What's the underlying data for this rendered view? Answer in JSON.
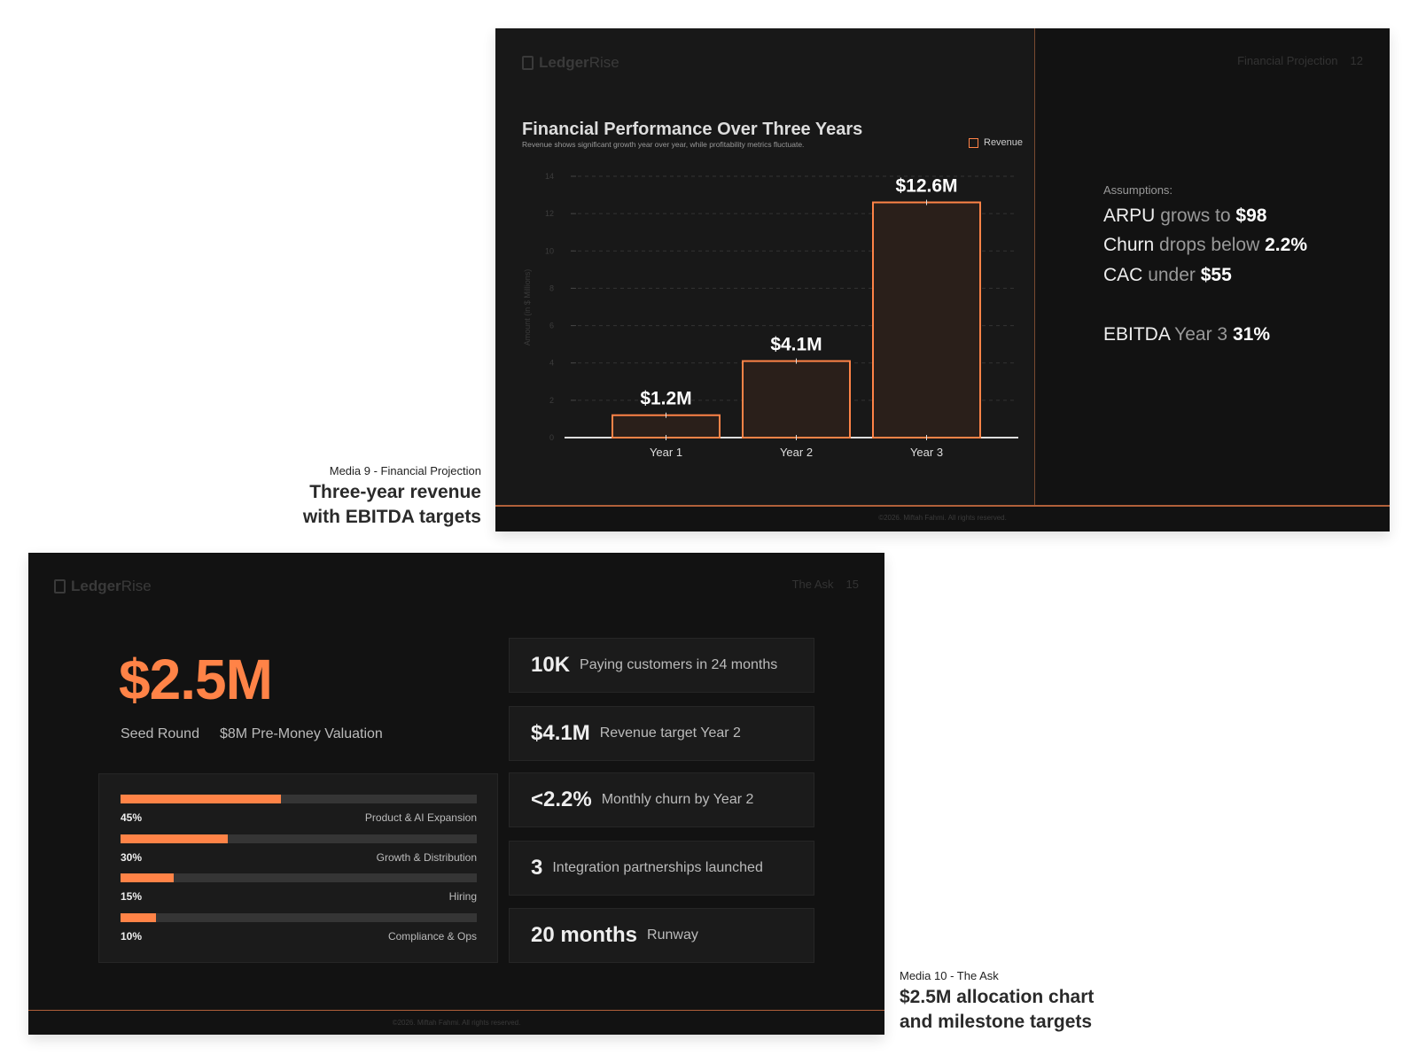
{
  "slide1": {
    "logo": {
      "bold": "Ledger",
      "light": "Rise"
    },
    "section": "Financial Projection",
    "page": "12",
    "footer": "©2026. Miftah Fahmi. All rights reserved.",
    "assumptions": {
      "label": "Assumptions:",
      "lines": [
        {
          "a": "ARPU",
          "b": "grows to",
          "c": "$98"
        },
        {
          "a": "Churn",
          "b": "drops below",
          "c": "2.2%"
        },
        {
          "a": "CAC",
          "b": "under",
          "c": "$55"
        },
        {
          "a": "EBITDA",
          "b": "Year 3",
          "c": "31%"
        }
      ]
    }
  },
  "caption1": {
    "sub": "Media 9 - Financial Projection",
    "line1": "Three-year revenue",
    "line2": "with EBITDA targets"
  },
  "chart_data": {
    "type": "bar",
    "title": "Financial Performance Over Three Years",
    "subtitle": "Revenue shows significant growth year over year, while profitability metrics fluctuate.",
    "categories": [
      "Year 1",
      "Year 2",
      "Year 3"
    ],
    "series": [
      {
        "name": "Revenue",
        "values": [
          1.2,
          4.1,
          12.6
        ],
        "labels": [
          "$1.2M",
          "$4.1M",
          "$12.6M"
        ]
      }
    ],
    "ylabel": "Amount (in $ Millions)",
    "xlabel": "",
    "ylim": [
      0,
      14
    ],
    "yticks": [
      0,
      2,
      4,
      6,
      8,
      10,
      12,
      14
    ],
    "grid": true,
    "legend": "top-right",
    "colors": {
      "bar_stroke": "#ff8347",
      "bar_fill": "#2a1f1a"
    }
  },
  "slide2": {
    "logo": {
      "bold": "Ledger",
      "light": "Rise"
    },
    "section": "The Ask",
    "page": "15",
    "amount": "$2.5M",
    "round": "Seed Round",
    "valuation": "$8M Pre-Money Valuation",
    "accent": "#ff8347",
    "allocation": [
      {
        "pct": "45%",
        "value": 45,
        "name": "Product & AI Expansion"
      },
      {
        "pct": "30%",
        "value": 30,
        "name": "Growth & Distribution"
      },
      {
        "pct": "15%",
        "value": 15,
        "name": "Hiring"
      },
      {
        "pct": "10%",
        "value": 10,
        "name": "Compliance & Ops"
      }
    ],
    "milestones": [
      {
        "value": "10K",
        "text": "Paying customers in 24 months"
      },
      {
        "value": "$4.1M",
        "text": "Revenue target Year 2"
      },
      {
        "value": "<2.2%",
        "text": "Monthly churn by Year 2"
      },
      {
        "value": "3",
        "text": "Integration partnerships launched"
      },
      {
        "value": "20 months",
        "text": "Runway"
      }
    ],
    "footer": "©2026. Miftah Fahmi. All rights reserved."
  },
  "caption2": {
    "sub": "Media 10 - The Ask",
    "line1": "$2.5M allocation chart",
    "line2": "and milestone targets"
  }
}
